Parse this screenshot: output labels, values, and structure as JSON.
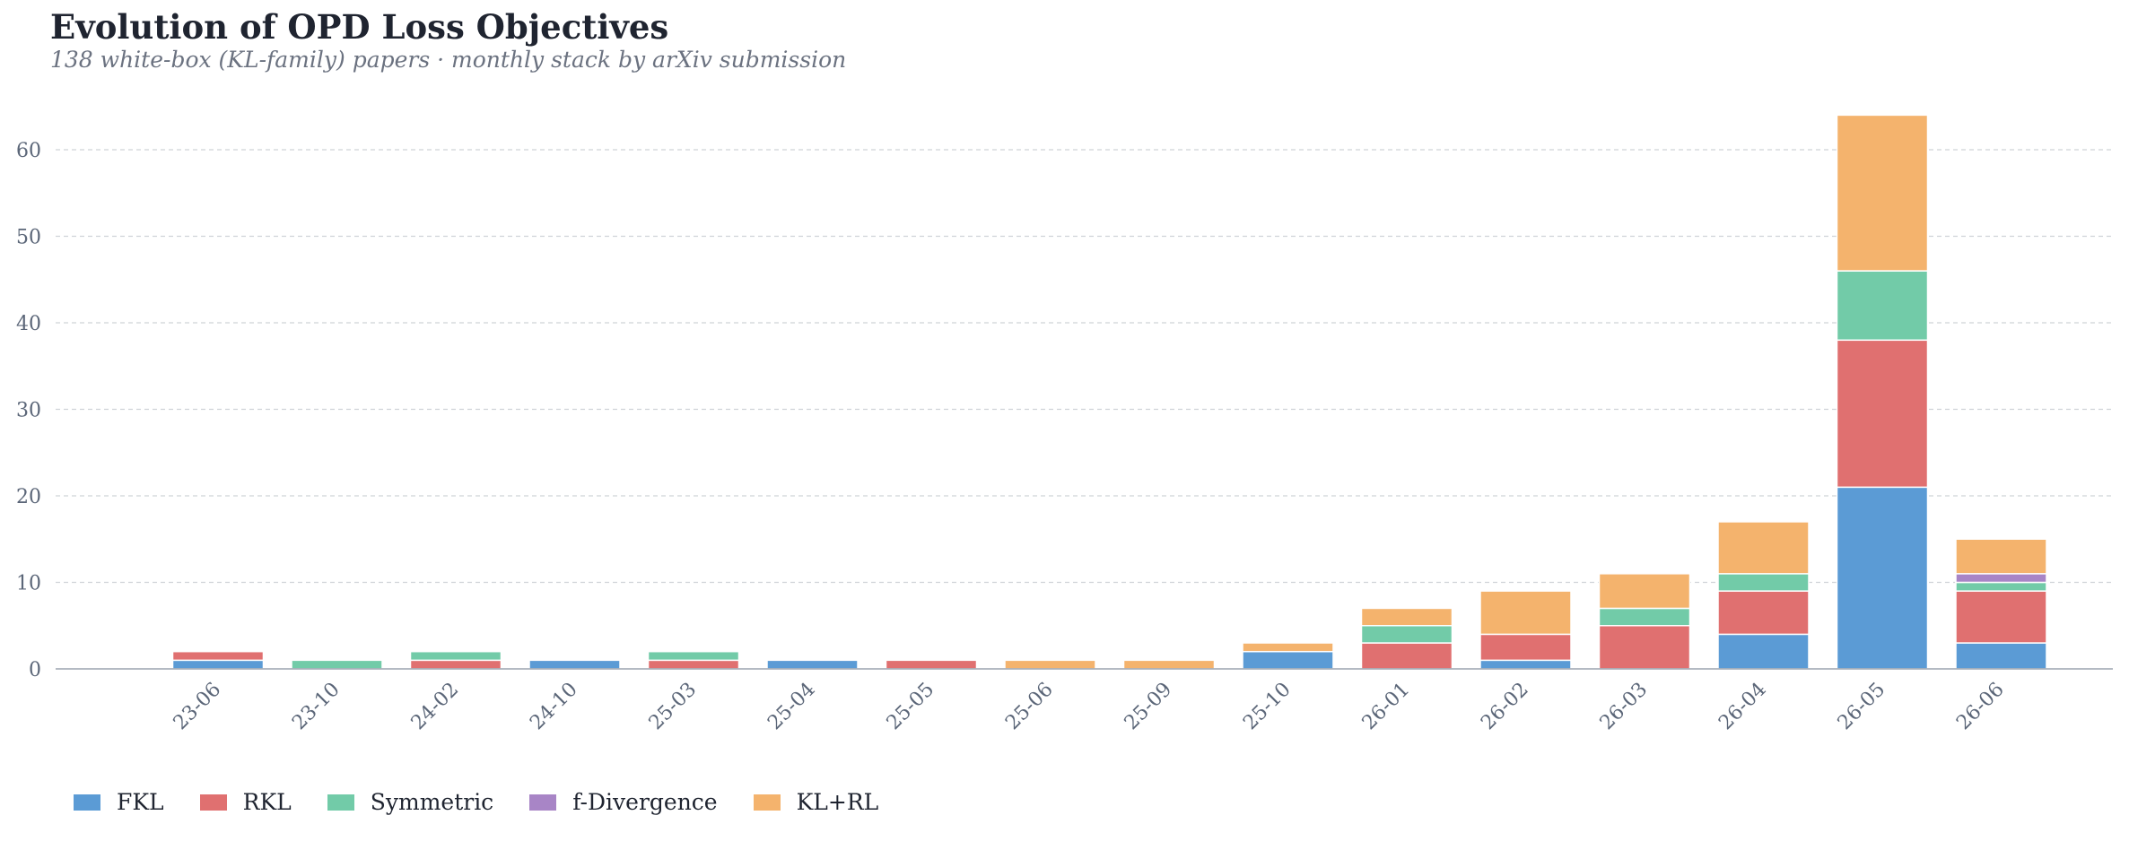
{
  "title": "Evolution of OPD Loss Objectives",
  "subtitle": "138 white-box (KL-family) papers  ·  monthly stack by arXiv submission",
  "colors": {
    "FKL": "#5b9bd5",
    "RKL": "#e07070",
    "Symmetric": "#72cba8",
    "f-Divergence": "#a885c6",
    "KL+RL": "#f4b36d",
    "grid": "#cfd3d8",
    "axis": "#9ca3af",
    "tick_text": "#5b6678"
  },
  "chart_data": {
    "type": "bar",
    "stacked": true,
    "title": "Evolution of OPD Loss Objectives",
    "subtitle": "138 white-box (KL-family) papers  ·  monthly stack by arXiv submission",
    "xlabel": "",
    "ylabel": "",
    "categories": [
      "23-06",
      "23-10",
      "24-02",
      "24-10",
      "25-03",
      "25-04",
      "25-05",
      "25-06",
      "25-09",
      "25-10",
      "26-01",
      "26-02",
      "26-03",
      "26-04",
      "26-05",
      "26-06"
    ],
    "series": [
      {
        "name": "FKL",
        "values": [
          1,
          0,
          0,
          1,
          0,
          1,
          0,
          0,
          0,
          2,
          0,
          1,
          0,
          4,
          21,
          3
        ]
      },
      {
        "name": "RKL",
        "values": [
          1,
          0,
          1,
          0,
          1,
          0,
          1,
          0,
          0,
          0,
          3,
          3,
          5,
          5,
          17,
          6
        ]
      },
      {
        "name": "Symmetric",
        "values": [
          0,
          1,
          1,
          0,
          1,
          0,
          0,
          0,
          0,
          0,
          2,
          0,
          2,
          2,
          8,
          1
        ]
      },
      {
        "name": "f-Divergence",
        "values": [
          0,
          0,
          0,
          0,
          0,
          0,
          0,
          0,
          0,
          0,
          0,
          0,
          0,
          0,
          0,
          1
        ]
      },
      {
        "name": "KL+RL",
        "values": [
          0,
          0,
          0,
          0,
          0,
          0,
          0,
          1,
          1,
          1,
          2,
          5,
          4,
          6,
          18,
          4
        ]
      }
    ],
    "ylim": [
      0,
      64
    ],
    "yticks": [
      0,
      10,
      20,
      30,
      40,
      50,
      60
    ],
    "grid": true,
    "legend_position": "bottom-left"
  }
}
